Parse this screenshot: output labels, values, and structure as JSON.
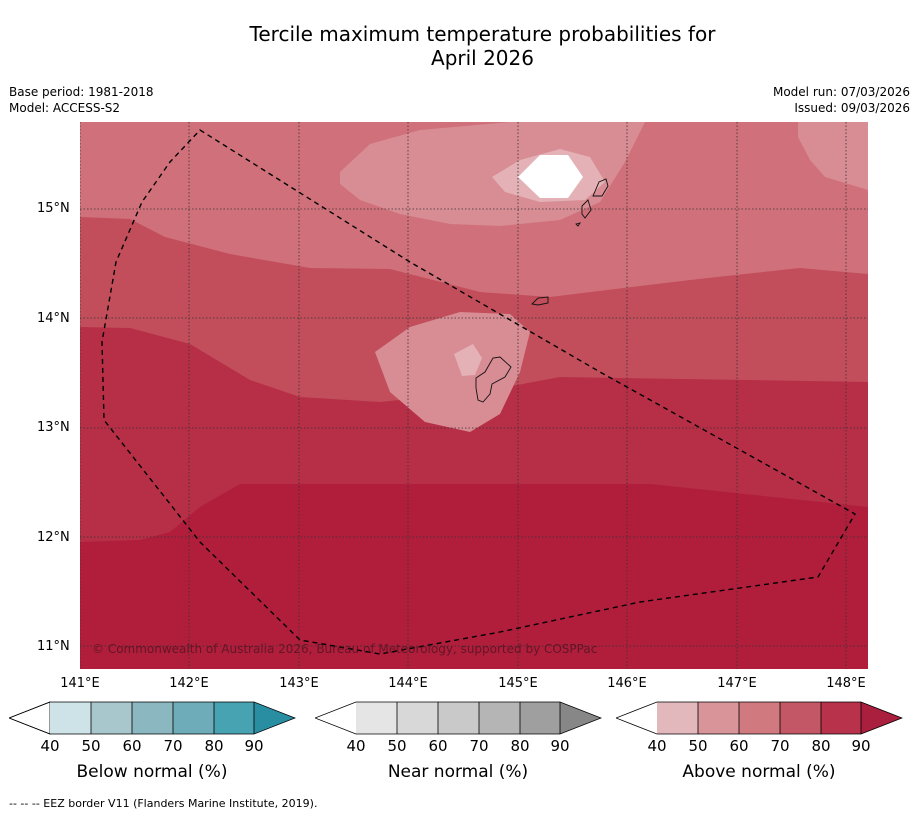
{
  "title": {
    "line1": "Tercile maximum temperature probabilities for",
    "line2": "April 2026"
  },
  "meta": {
    "base_period": "Base period: 1981-2018",
    "model": "Model: ACCESS-S2",
    "model_run": "Model run: 07/03/2026",
    "issued": "Issued: 09/03/2026"
  },
  "map": {
    "lat_labels": [
      "15°N",
      "14°N",
      "13°N",
      "12°N",
      "11°N"
    ],
    "lon_labels": [
      "141°E",
      "142°E",
      "143°E",
      "144°E",
      "145°E",
      "146°E",
      "147°E",
      "148°E"
    ],
    "copyright": "© Commonwealth of Australia 2026, Bureau of Meteorology, supported by COSPPac",
    "colors": {
      "above_60_70": "#d0707a",
      "above_70_80": "#c24e5b",
      "above_80_90": "#b62f46",
      "above_90": "#b01e3b",
      "above_50_60": "#d88c94",
      "above_40_50": "#e3b1b6"
    }
  },
  "colorbars": [
    {
      "name": "below",
      "label": "Below normal (%)",
      "ticks": [
        "40",
        "50",
        "60",
        "70",
        "80",
        "90"
      ],
      "colors": [
        "#cde3e8",
        "#a7c7cd",
        "#8bb7c1",
        "#6eacba",
        "#47a2b1",
        "#2a8ea2"
      ]
    },
    {
      "name": "near",
      "label": "Near normal (%)",
      "ticks": [
        "40",
        "50",
        "60",
        "70",
        "80",
        "90"
      ],
      "colors": [
        "#e5e5e5",
        "#d8d8d8",
        "#c9c9c9",
        "#b5b5b5",
        "#9f9f9f",
        "#878787"
      ]
    },
    {
      "name": "above",
      "label": "Above normal (%)",
      "ticks": [
        "40",
        "50",
        "60",
        "70",
        "80",
        "90"
      ],
      "colors": [
        "#e3b8bd",
        "#d89499",
        "#d07a80",
        "#c35765",
        "#b7324a",
        "#a91f3d"
      ]
    }
  ],
  "footnote": "--  --  -- EEZ border V11 (Flanders Marine Institute, 2019)."
}
